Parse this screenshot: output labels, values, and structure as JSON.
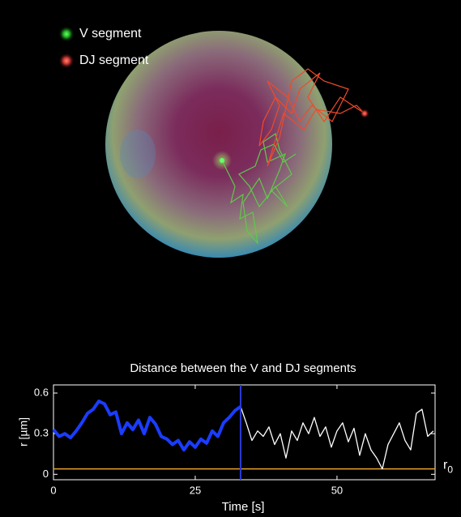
{
  "legend": {
    "v_label": "V segment",
    "dj_label": "DJ segment"
  },
  "chart_data": {
    "type": "line",
    "title": "Distance between the V and DJ segments",
    "x_label": "Time [s]",
    "y_label": "r [µm]",
    "xlim": [
      0,
      67.3
    ],
    "ylim": [
      -0.04,
      0.66
    ],
    "xticks": [
      0,
      25,
      50
    ],
    "yticks": [
      0,
      0.3,
      0.6
    ],
    "series": [
      {
        "color": "#1a3cff",
        "x": [
          0,
          1,
          2,
          3,
          4,
          5,
          6,
          7,
          8,
          9,
          10,
          11,
          12,
          13,
          14,
          15,
          16,
          17,
          18,
          19,
          20,
          21,
          22,
          23,
          24,
          25,
          26,
          27,
          28,
          29,
          30,
          31,
          32,
          33
        ],
        "values": [
          0.33,
          0.28,
          0.3,
          0.27,
          0.32,
          0.38,
          0.45,
          0.48,
          0.54,
          0.52,
          0.44,
          0.46,
          0.3,
          0.38,
          0.33,
          0.4,
          0.3,
          0.42,
          0.37,
          0.28,
          0.26,
          0.22,
          0.25,
          0.18,
          0.24,
          0.2,
          0.26,
          0.23,
          0.32,
          0.28,
          0.38,
          0.42,
          0.47,
          0.5
        ]
      },
      {
        "color": "#ffffff",
        "x": [
          33,
          34,
          35,
          36,
          37,
          38,
          39,
          40,
          41,
          42,
          43,
          44,
          45,
          46,
          47,
          48,
          49,
          50,
          51,
          52,
          53,
          54,
          55,
          56,
          57,
          58,
          59,
          60,
          61,
          62,
          63,
          64,
          65,
          66,
          67
        ],
        "values": [
          0.5,
          0.38,
          0.25,
          0.32,
          0.28,
          0.35,
          0.22,
          0.3,
          0.12,
          0.32,
          0.25,
          0.38,
          0.3,
          0.42,
          0.28,
          0.35,
          0.2,
          0.32,
          0.38,
          0.24,
          0.34,
          0.14,
          0.3,
          0.18,
          0.12,
          0.04,
          0.22,
          0.3,
          0.38,
          0.25,
          0.18,
          0.45,
          0.48,
          0.28,
          0.32
        ]
      }
    ],
    "vline": {
      "x": 33,
      "color": "#2a3ad8"
    },
    "hline": {
      "y": 0.04,
      "color": "#e8a030",
      "label": "r",
      "label_sub": "0"
    }
  }
}
